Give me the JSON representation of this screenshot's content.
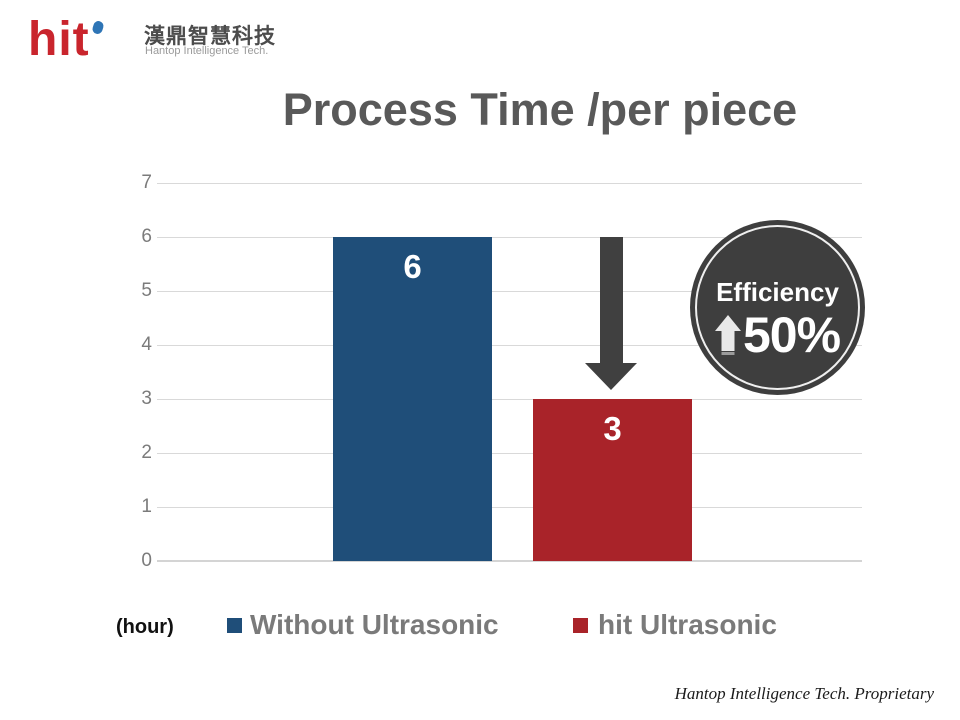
{
  "logo": {
    "brand": "hit",
    "brand_color": "#C9252D",
    "dot_color": "#2E75B6",
    "company_zh": "漢鼎智慧科技",
    "company_en": "Hantop Intelligence Tech."
  },
  "title": "Process Time /per piece",
  "chart_data": {
    "type": "bar",
    "title": "Process Time /per piece",
    "categories": [
      "Without Ultrasonic",
      "hit Ultrasonic"
    ],
    "values": [
      6,
      3
    ],
    "unit": "(hour)",
    "xlabel": "",
    "ylabel": "",
    "ylim": [
      0,
      7
    ],
    "yticks": [
      0,
      1,
      2,
      3,
      4,
      5,
      6,
      7
    ],
    "grid": true,
    "legend_position": "bottom",
    "bar_colors": [
      "#1F4E79",
      "#A92329"
    ],
    "bar_label_color": "#FFFFFF",
    "gridline_color": "#D9D9D9"
  },
  "annotation": {
    "down_arrow_color": "#404040",
    "badge": {
      "label": "Efficiency",
      "value": "50%",
      "bg_color": "#3E3E3E",
      "ring_color": "#EFEFEF",
      "up_arrow_color": "#E9E9E9"
    }
  },
  "legend": {
    "unit_label": "(hour)",
    "items": [
      {
        "label": "Without Ultrasonic",
        "color": "#1F4E79"
      },
      {
        "label": "hit Ultrasonic",
        "color": "#A92329"
      }
    ]
  },
  "footer": "Hantop Intelligence Tech. Proprietary"
}
